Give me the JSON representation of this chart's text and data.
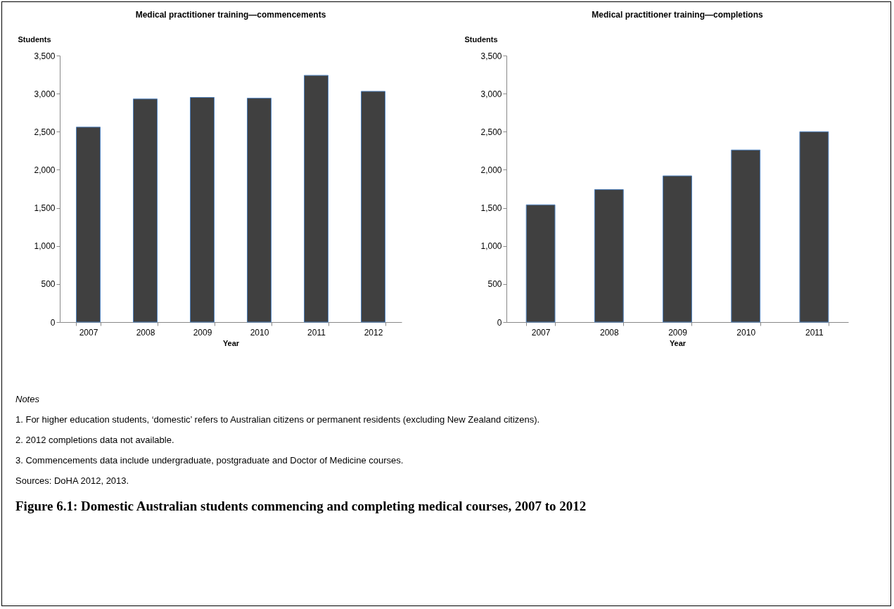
{
  "chart_data": [
    {
      "type": "bar",
      "title": "Medical practitioner training—commencements",
      "xlabel": "Year",
      "ylabel": "Students",
      "categories": [
        "2007",
        "2008",
        "2009",
        "2010",
        "2011",
        "2012"
      ],
      "values": [
        2560,
        2930,
        2950,
        2940,
        3240,
        3030
      ],
      "color": "#404040",
      "ylim": [
        0,
        3500
      ],
      "yticks": [
        {
          "value": 0,
          "label": "0"
        },
        {
          "value": 500,
          "label": "500"
        },
        {
          "value": 1000,
          "label": "1,000"
        },
        {
          "value": 1500,
          "label": "1,500"
        },
        {
          "value": 2000,
          "label": "2,000"
        },
        {
          "value": 2500,
          "label": "2,500"
        },
        {
          "value": 3000,
          "label": "3,000"
        },
        {
          "value": 3500,
          "label": "3,500"
        }
      ]
    },
    {
      "type": "bar",
      "title": "Medical practitioner training—completions",
      "xlabel": "Year",
      "ylabel": "Students",
      "categories": [
        "2007",
        "2008",
        "2009",
        "2010",
        "2011"
      ],
      "values": [
        1540,
        1740,
        1920,
        2260,
        2500
      ],
      "color": "#404040",
      "ylim": [
        0,
        3500
      ],
      "yticks": [
        {
          "value": 0,
          "label": "0"
        },
        {
          "value": 500,
          "label": "500"
        },
        {
          "value": 1000,
          "label": "1,000"
        },
        {
          "value": 1500,
          "label": "1,500"
        },
        {
          "value": 2000,
          "label": "2,000"
        },
        {
          "value": 2500,
          "label": "2,500"
        },
        {
          "value": 3000,
          "label": "3,000"
        },
        {
          "value": 3500,
          "label": "3,500"
        }
      ],
      "annotations": [
        "Notes",
        "1. For higher education students, ‘domestic’ refers to Australian citizens or permanent residents (excluding New Zealand citizens).",
        "2. 2012 completions data not available.",
        "3. Commencements data include undergraduate, postgraduate and Doctor of Medicine courses.",
        "Sources: DoHA 2012, 2013.",
        "Figure 6.1: Domestic Australian students commencing and completing medical courses, 2007 to 2012"
      ]
    }
  ]
}
